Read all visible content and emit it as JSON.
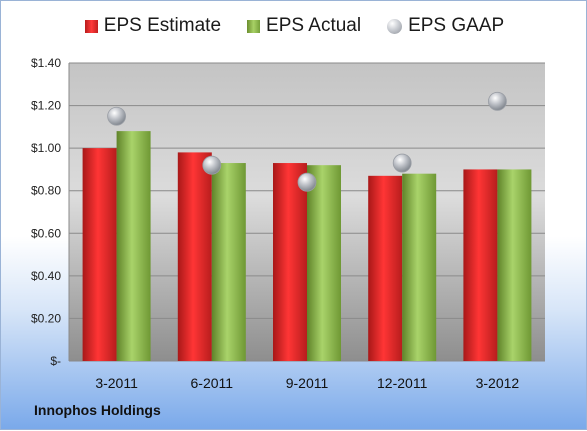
{
  "chart_data": {
    "type": "bar",
    "categories": [
      "3-2011",
      "6-2011",
      "9-2011",
      "12-2011",
      "3-2012"
    ],
    "series": [
      {
        "name": "EPS Estimate",
        "type": "bar",
        "values": [
          1.0,
          0.98,
          0.93,
          0.87,
          0.9
        ],
        "color": "#d42424"
      },
      {
        "name": "EPS Actual",
        "type": "bar",
        "values": [
          1.08,
          0.93,
          0.92,
          0.88,
          0.9
        ],
        "color": "#8fbc4f"
      },
      {
        "name": "EPS GAAP",
        "type": "scatter",
        "values": [
          1.15,
          0.92,
          0.84,
          0.93,
          1.22
        ],
        "color": "#b9bcc2"
      }
    ],
    "yticks": [
      "$-",
      "$0.20",
      "$0.40",
      "$0.60",
      "$0.80",
      "$1.00",
      "$1.20",
      "$1.40"
    ],
    "ylim": [
      0,
      1.4
    ],
    "grid": true,
    "legend_position": "top"
  },
  "footer": {
    "company": "Innophos Holdings"
  }
}
